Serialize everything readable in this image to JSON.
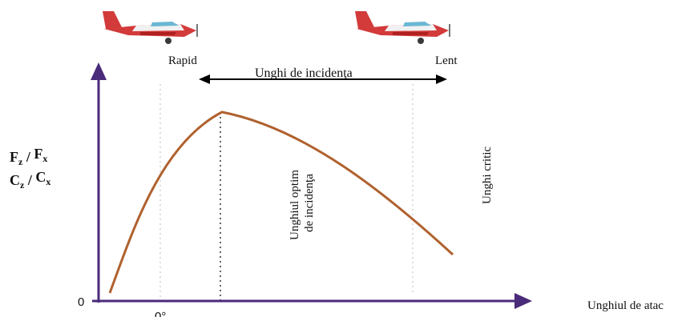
{
  "header": {
    "left": "Rapid",
    "right": "Lent",
    "range": "Unghi de incidenţa"
  },
  "y_axis": {
    "origin": "0",
    "lines": [
      {
        "a": "F",
        "a_sub": "z",
        "sep": " / ",
        "b": "F",
        "b_sub": "x"
      },
      {
        "a": "C",
        "a_sub": "z",
        "sep": " / ",
        "b": "C",
        "b_sub": "x"
      }
    ]
  },
  "x_axis": {
    "label": "Unghiul de atac",
    "zero": "0°"
  },
  "annotations": {
    "optimum": [
      "Unghiul optim",
      "de incidenţa"
    ],
    "critical": "Unghi critic"
  }
}
